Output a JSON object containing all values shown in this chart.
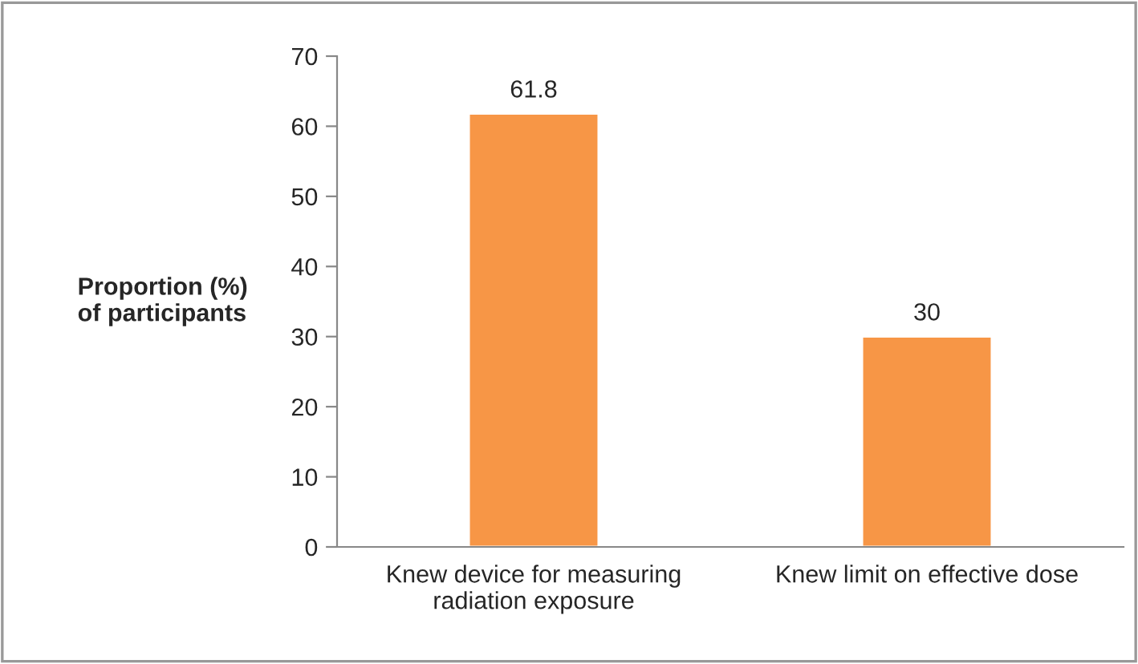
{
  "chart_data": {
    "type": "bar",
    "ylabel": "Proportion (%)\nof participants",
    "categories": [
      "Knew device for measuring\nradiation exposure",
      "Knew limit on effective dose"
    ],
    "values": [
      61.8,
      30
    ],
    "color": "#f79646",
    "data_labels": true,
    "ylim": [
      0,
      70
    ],
    "yticks": [
      0,
      10,
      20,
      30,
      40,
      50,
      60,
      70
    ],
    "grid": false,
    "legend": false
  }
}
